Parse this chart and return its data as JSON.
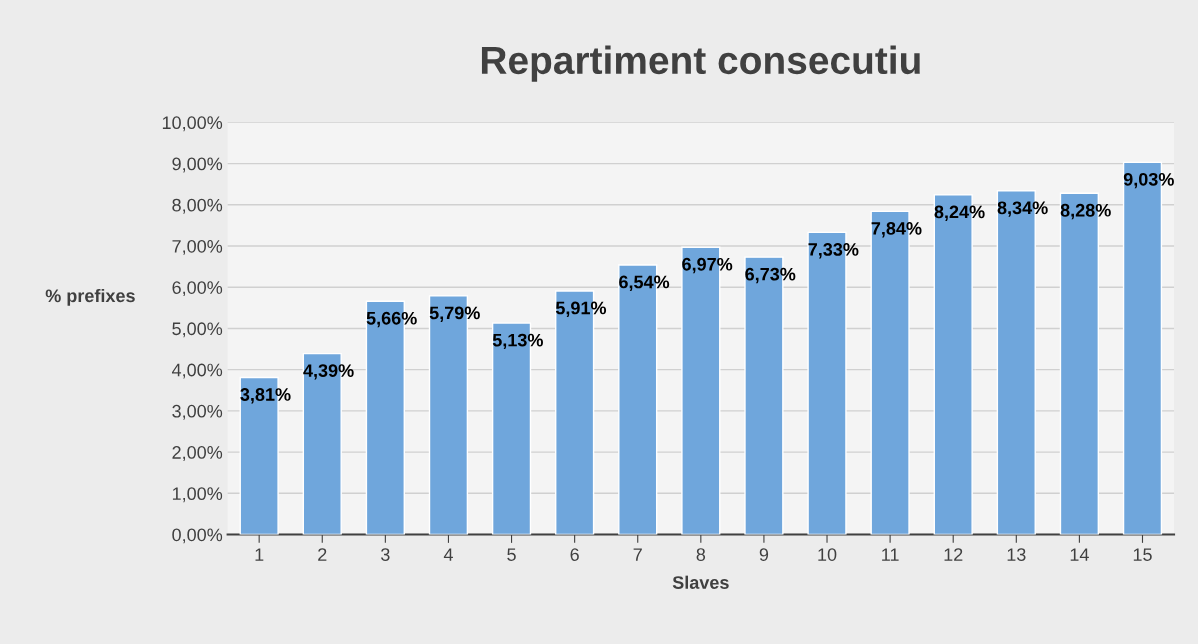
{
  "chart_data": {
    "type": "bar",
    "title": "Repartiment consecutiu",
    "xlabel": "Slaves",
    "ylabel": "% prefixes",
    "categories": [
      "1",
      "2",
      "3",
      "4",
      "5",
      "6",
      "7",
      "8",
      "9",
      "10",
      "11",
      "12",
      "13",
      "14",
      "15"
    ],
    "values": [
      3.81,
      4.39,
      5.66,
      5.79,
      5.13,
      5.91,
      6.54,
      6.97,
      6.73,
      7.33,
      7.84,
      8.24,
      8.34,
      8.28,
      9.03
    ],
    "value_labels": [
      "3,81%",
      "4,39%",
      "5,66%",
      "5,79%",
      "5,13%",
      "5,91%",
      "6,54%",
      "6,97%",
      "6,73%",
      "7,33%",
      "7,84%",
      "8,24%",
      "8,34%",
      "8,28%",
      "9,03%"
    ],
    "color": "#6fa6dc",
    "ylim": [
      0,
      10
    ],
    "yticks": [
      {
        "value": 0,
        "label": "0,00%"
      },
      {
        "value": 1,
        "label": "1,00%"
      },
      {
        "value": 2,
        "label": "2,00%"
      },
      {
        "value": 3,
        "label": "3,00%"
      },
      {
        "value": 4,
        "label": "4,00%"
      },
      {
        "value": 5,
        "label": "5,00%"
      },
      {
        "value": 6,
        "label": "6,00%"
      },
      {
        "value": 7,
        "label": "7,00%"
      },
      {
        "value": 8,
        "label": "8,00%"
      },
      {
        "value": 9,
        "label": "9,00%"
      },
      {
        "value": 10,
        "label": "10,00%"
      }
    ],
    "grid": "y",
    "legend": false
  }
}
